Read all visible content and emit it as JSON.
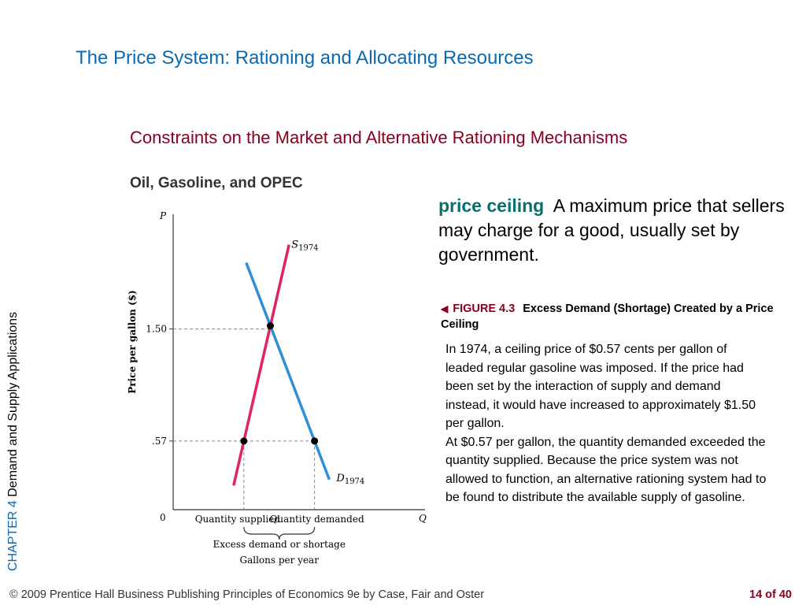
{
  "slide_title": "The Price System:  Rationing and Allocating Resources",
  "section_title": "Constraints on the Market and Alternative Rationing Mechanisms",
  "sub_title": "Oil, Gasoline, and OPEC",
  "sidebar": {
    "chapter": "CHAPTER 4",
    "topic": "Demand and Supply Applications"
  },
  "definition": {
    "term": "price ceiling",
    "text": "A maximum price that sellers may charge for a good, usually set by government."
  },
  "figure": {
    "label": "FIGURE 4.3",
    "title": "Excess Demand (Shortage) Created by a Price Ceiling",
    "paragraphs": [
      "In 1974, a ceiling price of $0.57 cents per gallon of leaded regular gasoline was imposed. If the price had been set by the interaction of supply and demand instead, it would have increased to approximately $1.50 per gallon.",
      "At $0.57 per gallon, the quantity demanded exceeded the quantity supplied. Because the price system was not allowed to function, an alternative rationing system had to be found to distribute the available supply of gasoline."
    ]
  },
  "footer": {
    "left": "© 2009 Prentice Hall Business Publishing   Principles of Economics 9e by Case, Fair and Oster",
    "page": "14 of 40"
  },
  "colors": {
    "supply": "#e0245e",
    "demand": "#2f8fd6",
    "title": "#0a6ab0",
    "accent": "#8b0020",
    "term": "#0a6e6e"
  },
  "chart_data": {
    "type": "line",
    "y_axis_letter": "P",
    "x_axis_letter": "Q",
    "origin_label": "0",
    "ylabel": "Price per gallon ($)",
    "y_ticks": [
      ".57",
      "1.50"
    ],
    "x_tick_labels": [
      "Quantity supplied",
      "Quantity demanded"
    ],
    "bracket_label": "Excess demand or shortage",
    "xlabel": "Gallons per year",
    "grid": false,
    "series": [
      {
        "name": "S",
        "subscript": "1974",
        "points": [
          {
            "q": 0.24,
            "p": 0.2
          },
          {
            "q": 0.46,
            "p": 2.2
          }
        ]
      },
      {
        "name": "D",
        "subscript": "1974",
        "points": [
          {
            "q": 0.29,
            "p": 2.05
          },
          {
            "q": 0.62,
            "p": 0.25
          }
        ]
      }
    ],
    "equilibrium": {
      "price": 1.5
    },
    "ceiling": {
      "price": 0.57
    }
  }
}
